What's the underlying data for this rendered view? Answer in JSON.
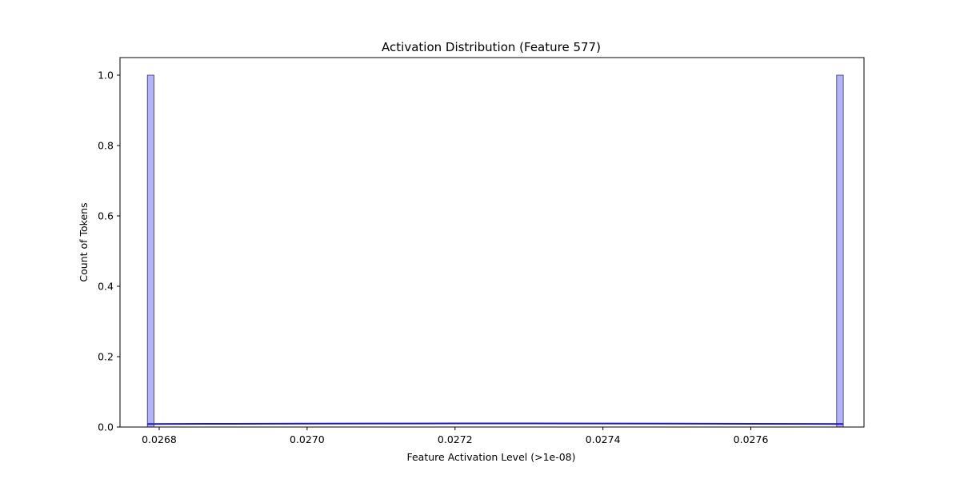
{
  "chart_data": {
    "type": "bar",
    "title": "Activation Distribution (Feature 577)",
    "xlabel": "Feature Activation Level (>1e-08)",
    "ylabel": "Count of Tokens",
    "xlim": [
      0.026747,
      0.027753
    ],
    "ylim": [
      0,
      1.05
    ],
    "x_ticks": [
      {
        "value": 0.0268,
        "label": "0.0268"
      },
      {
        "value": 0.027,
        "label": "0.0270"
      },
      {
        "value": 0.0272,
        "label": "0.0272"
      },
      {
        "value": 0.0274,
        "label": "0.0274"
      },
      {
        "value": 0.0276,
        "label": "0.0276"
      }
    ],
    "y_ticks": [
      {
        "value": 0.0,
        "label": "0.0"
      },
      {
        "value": 0.2,
        "label": "0.2"
      },
      {
        "value": 0.4,
        "label": "0.4"
      },
      {
        "value": 0.6,
        "label": "0.6"
      },
      {
        "value": 0.8,
        "label": "0.8"
      },
      {
        "value": 1.0,
        "label": "1.0"
      }
    ],
    "bins": [
      {
        "x0": 0.026784,
        "x1": 0.026793,
        "count": 1
      },
      {
        "x0": 0.027716,
        "x1": 0.027725,
        "count": 1
      }
    ],
    "kde_curve": {
      "x": [
        0.026784,
        0.0269,
        0.027,
        0.0271,
        0.0272,
        0.0273,
        0.0274,
        0.0275,
        0.0276,
        0.027725
      ],
      "y": [
        0.0085,
        0.0092,
        0.0097,
        0.01,
        0.0101,
        0.0101,
        0.01,
        0.0097,
        0.0092,
        0.0085
      ]
    },
    "grid": false,
    "legend": "none",
    "colors": {
      "bar_fill": "#b3b3f5",
      "bar_edge": "#333366",
      "kde_line": "#1a1acc",
      "axis": "#000000"
    }
  }
}
